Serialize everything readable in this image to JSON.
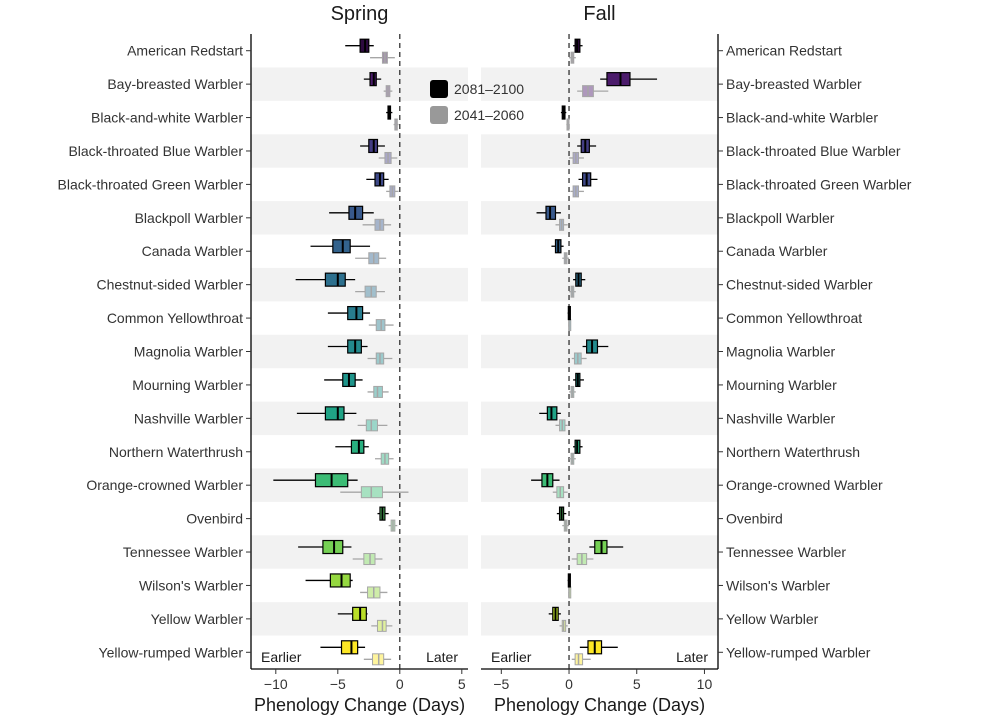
{
  "chart_data": {
    "type": "boxplot",
    "species": [
      "American Redstart",
      "Bay-breasted Warbler",
      "Black-and-white Warbler",
      "Black-throated Blue Warbler",
      "Black-throated Green Warbler",
      "Blackpoll Warbler",
      "Canada Warbler",
      "Chestnut-sided Warbler",
      "Common Yellowthroat",
      "Magnolia Warbler",
      "Mourning Warbler",
      "Nashville Warbler",
      "Northern Waterthrush",
      "Orange-crowned Warbler",
      "Ovenbird",
      "Tennessee Warbler",
      "Wilson's Warbler",
      "Yellow Warbler",
      "Yellow-rumped Warbler"
    ],
    "species_colors": [
      "#2d0a3f",
      "#4b1b6b",
      "#482878",
      "#433d84",
      "#3e4989",
      "#38598c",
      "#33638d",
      "#2d708e",
      "#287c8e",
      "#238a8d",
      "#1f958b",
      "#20a386",
      "#29af7f",
      "#3cbc75",
      "#55c667",
      "#75d054",
      "#95d840",
      "#bade28",
      "#fde725"
    ],
    "legend": {
      "entries": [
        {
          "label": "2081–2100",
          "color": "#000000"
        },
        {
          "label": "2041–2060",
          "color": "#999999"
        }
      ],
      "position": "top-center"
    },
    "xlabel": "Phenology Change (Days)",
    "zero_line": 0,
    "panels": [
      {
        "title": "Spring",
        "xlim": [
          -12,
          5.5
        ],
        "ticks": [
          -10,
          -5,
          0,
          5
        ],
        "annotation_left": "Earlier",
        "annotation_right": "Later",
        "late": [
          {
            "whisker": [
              -4.4,
              -2.1
            ],
            "box": [
              -3.2,
              -2.5
            ],
            "median": -2.8
          },
          {
            "whisker": [
              -2.9,
              -1.5
            ],
            "box": [
              -2.4,
              -1.9
            ],
            "median": -2.1
          },
          {
            "whisker": [
              -1.1,
              -0.6
            ],
            "box": [
              -0.95,
              -0.75
            ],
            "median": -0.85
          },
          {
            "whisker": [
              -3.2,
              -1.2
            ],
            "box": [
              -2.5,
              -1.8
            ],
            "median": -2.1
          },
          {
            "whisker": [
              -2.7,
              -0.9
            ],
            "box": [
              -2.0,
              -1.3
            ],
            "median": -1.6
          },
          {
            "whisker": [
              -5.7,
              -2.1
            ],
            "box": [
              -4.1,
              -3.0
            ],
            "median": -3.6
          },
          {
            "whisker": [
              -7.2,
              -2.4
            ],
            "box": [
              -5.4,
              -4.0
            ],
            "median": -4.6
          },
          {
            "whisker": [
              -8.4,
              -3.6
            ],
            "box": [
              -6.0,
              -4.4
            ],
            "median": -5.0
          },
          {
            "whisker": [
              -5.8,
              -2.4
            ],
            "box": [
              -4.2,
              -3.0
            ],
            "median": -3.5
          },
          {
            "whisker": [
              -5.8,
              -2.6
            ],
            "box": [
              -4.2,
              -3.1
            ],
            "median": -3.6
          },
          {
            "whisker": [
              -6.1,
              -3.0
            ],
            "box": [
              -4.6,
              -3.6
            ],
            "median": -4.1
          },
          {
            "whisker": [
              -8.3,
              -3.5
            ],
            "box": [
              -6.0,
              -4.5
            ],
            "median": -5.0
          },
          {
            "whisker": [
              -5.2,
              -2.5
            ],
            "box": [
              -3.9,
              -2.9
            ],
            "median": -3.3
          },
          {
            "whisker": [
              -10.2,
              -3.4
            ],
            "box": [
              -6.8,
              -4.2
            ],
            "median": -5.5
          },
          {
            "whisker": [
              -1.8,
              -0.9
            ],
            "box": [
              -1.6,
              -1.2
            ],
            "median": -1.4
          },
          {
            "whisker": [
              -8.2,
              -3.9
            ],
            "box": [
              -6.2,
              -4.6
            ],
            "median": -5.3
          },
          {
            "whisker": [
              -7.6,
              -3.8
            ],
            "box": [
              -5.6,
              -4.0
            ],
            "median": -4.7
          },
          {
            "whisker": [
              -5.0,
              -2.6
            ],
            "box": [
              -3.8,
              -2.7
            ],
            "median": -3.2
          },
          {
            "whisker": [
              -6.4,
              -2.8
            ],
            "box": [
              -4.7,
              -3.4
            ],
            "median": -3.9
          }
        ],
        "early": [
          {
            "whisker": [
              -2.4,
              -0.4
            ],
            "box": [
              -1.4,
              -1.0
            ],
            "median": -1.2
          },
          {
            "whisker": [
              -1.3,
              -0.6
            ],
            "box": [
              -1.1,
              -0.8
            ],
            "median": -0.95
          },
          {
            "whisker": [
              -0.5,
              -0.1
            ],
            "box": [
              -0.4,
              -0.2
            ],
            "median": -0.3
          },
          {
            "whisker": [
              -1.7,
              -0.2
            ],
            "box": [
              -1.2,
              -0.7
            ],
            "median": -0.95
          },
          {
            "whisker": [
              -1.1,
              -0.1
            ],
            "box": [
              -0.8,
              -0.4
            ],
            "median": -0.6
          },
          {
            "whisker": [
              -3.0,
              -0.7
            ],
            "box": [
              -2.0,
              -1.3
            ],
            "median": -1.6
          },
          {
            "whisker": [
              -3.6,
              -1.1
            ],
            "box": [
              -2.5,
              -1.7
            ],
            "median": -2.1
          },
          {
            "whisker": [
              -3.6,
              -1.2
            ],
            "box": [
              -2.8,
              -1.9
            ],
            "median": -2.3
          },
          {
            "whisker": [
              -2.5,
              -0.5
            ],
            "box": [
              -1.9,
              -1.2
            ],
            "median": -1.5
          },
          {
            "whisker": [
              -2.6,
              -0.6
            ],
            "box": [
              -1.9,
              -1.3
            ],
            "median": -1.6
          },
          {
            "whisker": [
              -2.6,
              -0.9
            ],
            "box": [
              -2.1,
              -1.4
            ],
            "median": -1.8
          },
          {
            "whisker": [
              -3.4,
              -1.0
            ],
            "box": [
              -2.7,
              -1.8
            ],
            "median": -2.3
          },
          {
            "whisker": [
              -2.0,
              -0.5
            ],
            "box": [
              -1.5,
              -0.9
            ],
            "median": -1.2
          },
          {
            "whisker": [
              -4.8,
              0.7
            ],
            "box": [
              -3.1,
              -1.4
            ],
            "median": -2.3
          },
          {
            "whisker": [
              -0.9,
              -0.2
            ],
            "box": [
              -0.7,
              -0.4
            ],
            "median": -0.55
          },
          {
            "whisker": [
              -3.8,
              -1.4
            ],
            "box": [
              -2.9,
              -2.0
            ],
            "median": -2.4
          },
          {
            "whisker": [
              -3.2,
              -1.0
            ],
            "box": [
              -2.6,
              -1.6
            ],
            "median": -2.1
          },
          {
            "whisker": [
              -2.3,
              -0.6
            ],
            "box": [
              -1.8,
              -1.1
            ],
            "median": -1.4
          },
          {
            "whisker": [
              -2.9,
              -0.7
            ],
            "box": [
              -2.2,
              -1.3
            ],
            "median": -1.7
          }
        ]
      },
      {
        "title": "Fall",
        "xlim": [
          -6.5,
          11
        ],
        "ticks": [
          -5,
          0,
          5,
          10
        ],
        "annotation_left": "Earlier",
        "annotation_right": "Later",
        "late": [
          {
            "whisker": [
              0.3,
              1.0
            ],
            "box": [
              0.45,
              0.8
            ],
            "median": 0.6
          },
          {
            "whisker": [
              2.3,
              6.5
            ],
            "box": [
              2.8,
              4.5
            ],
            "median": 3.8
          },
          {
            "whisker": [
              -0.6,
              -0.2
            ],
            "box": [
              -0.5,
              -0.3
            ],
            "median": -0.4
          },
          {
            "whisker": [
              0.6,
              2.0
            ],
            "box": [
              0.9,
              1.5
            ],
            "median": 1.2
          },
          {
            "whisker": [
              0.7,
              2.1
            ],
            "box": [
              1.0,
              1.6
            ],
            "median": 1.3
          },
          {
            "whisker": [
              -2.4,
              -0.6
            ],
            "box": [
              -1.7,
              -1.0
            ],
            "median": -1.4
          },
          {
            "whisker": [
              -1.3,
              -0.4
            ],
            "box": [
              -1.0,
              -0.6
            ],
            "median": -0.8
          },
          {
            "whisker": [
              0.3,
              1.2
            ],
            "box": [
              0.5,
              0.9
            ],
            "median": 0.7
          },
          {
            "whisker": [
              -0.1,
              0.1
            ],
            "box": [
              -0.05,
              0.05
            ],
            "median": 0.0
          },
          {
            "whisker": [
              1.0,
              2.9
            ],
            "box": [
              1.3,
              2.1
            ],
            "median": 1.7
          },
          {
            "whisker": [
              0.3,
              1.1
            ],
            "box": [
              0.5,
              0.8
            ],
            "median": 0.65
          },
          {
            "whisker": [
              -2.2,
              -0.6
            ],
            "box": [
              -1.6,
              -0.9
            ],
            "median": -1.3
          },
          {
            "whisker": [
              0.3,
              1.0
            ],
            "box": [
              0.45,
              0.8
            ],
            "median": 0.6
          },
          {
            "whisker": [
              -2.8,
              -0.7
            ],
            "box": [
              -2.0,
              -1.2
            ],
            "median": -1.6
          },
          {
            "whisker": [
              -0.9,
              -0.2
            ],
            "box": [
              -0.7,
              -0.4
            ],
            "median": -0.55
          },
          {
            "whisker": [
              1.5,
              4.0
            ],
            "box": [
              1.9,
              2.8
            ],
            "median": 2.4
          },
          {
            "whisker": [
              -0.1,
              0.1
            ],
            "box": [
              -0.05,
              0.05
            ],
            "median": 0.0
          },
          {
            "whisker": [
              -1.5,
              -0.6
            ],
            "box": [
              -1.2,
              -0.8
            ],
            "median": -1.0
          },
          {
            "whisker": [
              0.8,
              3.6
            ],
            "box": [
              1.4,
              2.4
            ],
            "median": 1.9
          }
        ],
        "early": [
          {
            "whisker": [
              0.0,
              0.5
            ],
            "box": [
              0.15,
              0.35
            ],
            "median": 0.25
          },
          {
            "whisker": [
              0.6,
              2.9
            ],
            "box": [
              1.0,
              1.8
            ],
            "median": 1.4
          },
          {
            "whisker": [
              -0.2,
              0.0
            ],
            "box": [
              -0.15,
              -0.05
            ],
            "median": -0.1
          },
          {
            "whisker": [
              0.0,
              1.1
            ],
            "box": [
              0.3,
              0.7
            ],
            "median": 0.5
          },
          {
            "whisker": [
              0.1,
              1.1
            ],
            "box": [
              0.3,
              0.7
            ],
            "median": 0.5
          },
          {
            "whisker": [
              -1.0,
              -0.1
            ],
            "box": [
              -0.7,
              -0.4
            ],
            "median": -0.55
          },
          {
            "whisker": [
              -0.5,
              0.0
            ],
            "box": [
              -0.35,
              -0.15
            ],
            "median": -0.25
          },
          {
            "whisker": [
              0.0,
              0.5
            ],
            "box": [
              0.15,
              0.35
            ],
            "median": 0.25
          },
          {
            "whisker": [
              -0.05,
              0.05
            ],
            "box": [
              -0.02,
              0.02
            ],
            "median": 0.0
          },
          {
            "whisker": [
              0.2,
              1.3
            ],
            "box": [
              0.4,
              0.9
            ],
            "median": 0.65
          },
          {
            "whisker": [
              0.0,
              0.5
            ],
            "box": [
              0.15,
              0.35
            ],
            "median": 0.25
          },
          {
            "whisker": [
              -1.0,
              -0.1
            ],
            "box": [
              -0.7,
              -0.3
            ],
            "median": -0.5
          },
          {
            "whisker": [
              0.0,
              0.5
            ],
            "box": [
              0.15,
              0.35
            ],
            "median": 0.25
          },
          {
            "whisker": [
              -1.2,
              -0.1
            ],
            "box": [
              -0.9,
              -0.4
            ],
            "median": -0.65
          },
          {
            "whisker": [
              -0.5,
              0.0
            ],
            "box": [
              -0.35,
              -0.15
            ],
            "median": -0.25
          },
          {
            "whisker": [
              0.2,
              1.8
            ],
            "box": [
              0.6,
              1.3
            ],
            "median": 0.95
          },
          {
            "whisker": [
              -0.05,
              0.05
            ],
            "box": [
              -0.02,
              0.02
            ],
            "median": 0.0
          },
          {
            "whisker": [
              -0.7,
              -0.1
            ],
            "box": [
              -0.5,
              -0.25
            ],
            "median": -0.4
          },
          {
            "whisker": [
              0.2,
              1.6
            ],
            "box": [
              0.45,
              1.0
            ],
            "median": 0.7
          }
        ]
      }
    ]
  }
}
